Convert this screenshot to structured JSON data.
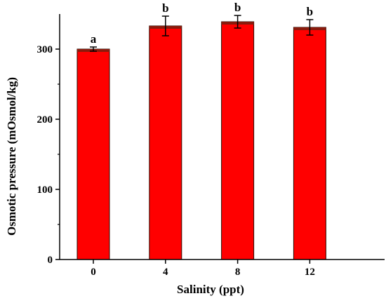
{
  "chart_data": {
    "type": "bar",
    "title": "",
    "xlabel": "Salinity (ppt)",
    "ylabel": "Osmotic pressure (mOsmol/kg)",
    "categories": [
      "0",
      "4",
      "8",
      "12"
    ],
    "values": [
      300,
      333,
      339,
      331
    ],
    "errors": [
      3,
      14,
      9,
      11
    ],
    "significance_letters": [
      "a",
      "b",
      "b",
      "b"
    ],
    "yticks": [
      "0",
      "100",
      "200",
      "300"
    ],
    "ytick_values": [
      0,
      100,
      200,
      300
    ],
    "ylim": [
      0,
      350
    ],
    "grid": false,
    "legend": "none",
    "colors": {
      "bar_fill": "#ff0000",
      "bar_top": "#8b1a0c",
      "bar_edge": "#2a0a00",
      "axis": "#000000"
    }
  }
}
